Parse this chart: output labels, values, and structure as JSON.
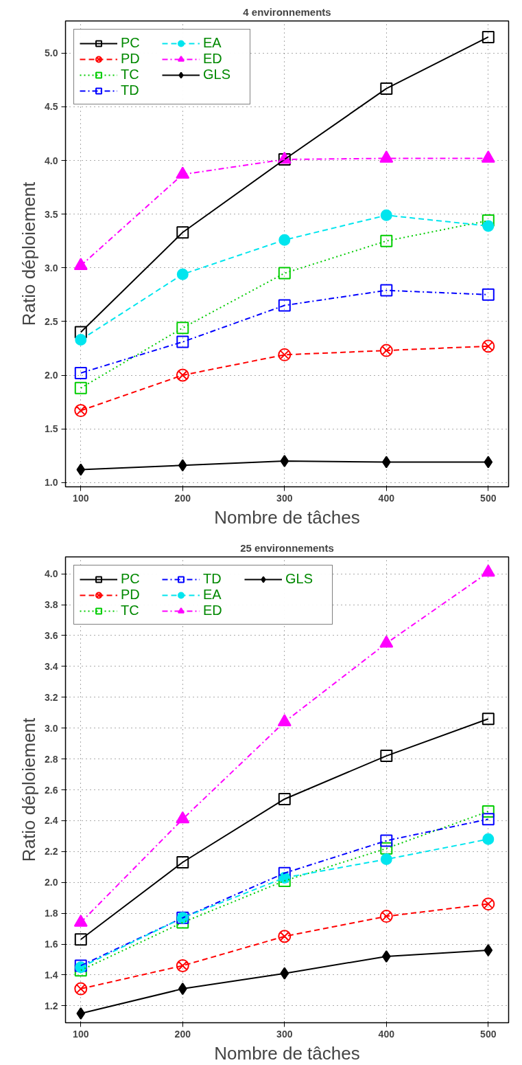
{
  "chart_data": [
    {
      "type": "line",
      "title": "4 environnements",
      "xlabel": "Nombre de tâches",
      "ylabel": "Ratio déploiement",
      "x": [
        100,
        200,
        300,
        400,
        500
      ],
      "xlim": [
        85,
        520
      ],
      "xticks": [
        100,
        200,
        300,
        400,
        500
      ],
      "ylim": [
        0.96,
        5.3
      ],
      "yticks": [
        {
          "value": 1,
          "label": "1.0"
        },
        1.5,
        {
          "value": 2,
          "label": "2.0"
        },
        2.5,
        {
          "value": 3,
          "label": "3.0"
        },
        3.5,
        {
          "value": 4,
          "label": "4.0"
        },
        4.5,
        {
          "value": 5,
          "label": "5.0"
        }
      ],
      "grid": true,
      "legend": "top left",
      "series": [
        {
          "name": "PC",
          "color": "#000000",
          "values": [
            2.4,
            3.33,
            4.01,
            4.67,
            5.15
          ],
          "marker": "square",
          "line_style": "solid"
        },
        {
          "name": "PD",
          "color": "#ff0000",
          "values": [
            1.67,
            2.0,
            2.19,
            2.23,
            2.27
          ],
          "marker": "cross",
          "line_style": "dashed"
        },
        {
          "name": "TC",
          "color": "#00cc00",
          "values": [
            1.88,
            2.44,
            2.95,
            3.25,
            3.44
          ],
          "marker": "square",
          "line_style": "dotted"
        },
        {
          "name": "TD",
          "color": "#0000ff",
          "values": [
            2.02,
            2.31,
            2.65,
            2.79,
            2.75
          ],
          "marker": "square",
          "line_style": "dashdot"
        },
        {
          "name": "EA",
          "color": "#00e5ee",
          "values": [
            2.33,
            2.94,
            3.26,
            3.49,
            3.39
          ],
          "marker": "circle",
          "line_style": "dashed"
        },
        {
          "name": "ED",
          "color": "#ff00ff",
          "values": [
            3.02,
            3.87,
            4.01,
            4.02,
            4.02
          ],
          "marker": "triangle",
          "line_style": "dashdot"
        },
        {
          "name": "GLS",
          "color": "#000000",
          "values": [
            1.12,
            1.16,
            1.2,
            1.19,
            1.19
          ],
          "marker": "diamond",
          "line_style": "solid"
        }
      ]
    },
    {
      "type": "line",
      "title": "25 environnements",
      "xlabel": "Nombre de tâches",
      "ylabel": "Ratio déploiement",
      "x": [
        100,
        200,
        300,
        400,
        500
      ],
      "xlim": [
        85,
        520
      ],
      "xticks": [
        100,
        200,
        300,
        400,
        500
      ],
      "ylim": [
        1.09,
        4.11
      ],
      "yticks": [
        1.2,
        1.4,
        1.6,
        1.8,
        {
          "value": 2,
          "label": "2.0"
        },
        2.2,
        2.4,
        2.6,
        2.8,
        {
          "value": 3,
          "label": "3.0"
        },
        3.2,
        3.4,
        3.6,
        3.8,
        {
          "value": 4,
          "label": "4.0"
        }
      ],
      "grid": true,
      "legend": "top left",
      "series": [
        {
          "name": "PC",
          "color": "#000000",
          "values": [
            1.63,
            2.13,
            2.54,
            2.82,
            3.06
          ],
          "marker": "square",
          "line_style": "solid"
        },
        {
          "name": "PD",
          "color": "#ff0000",
          "values": [
            1.31,
            1.46,
            1.65,
            1.78,
            1.86
          ],
          "marker": "cross",
          "line_style": "dashed"
        },
        {
          "name": "TC",
          "color": "#00cc00",
          "values": [
            1.43,
            1.74,
            2.01,
            2.22,
            2.46
          ],
          "marker": "square",
          "line_style": "dotted"
        },
        {
          "name": "TD",
          "color": "#0000ff",
          "values": [
            1.46,
            1.77,
            2.06,
            2.27,
            2.41
          ],
          "marker": "square",
          "line_style": "dashdot"
        },
        {
          "name": "EA",
          "color": "#00e5ee",
          "values": [
            1.45,
            1.77,
            2.03,
            2.15,
            2.28
          ],
          "marker": "circle",
          "line_style": "dashed"
        },
        {
          "name": "ED",
          "color": "#ff00ff",
          "values": [
            1.74,
            2.41,
            3.04,
            3.55,
            4.01
          ],
          "marker": "triangle",
          "line_style": "dashdot"
        },
        {
          "name": "GLS",
          "color": "#000000",
          "values": [
            1.15,
            1.31,
            1.41,
            1.52,
            1.56
          ],
          "marker": "diamond",
          "line_style": "solid"
        }
      ]
    }
  ]
}
